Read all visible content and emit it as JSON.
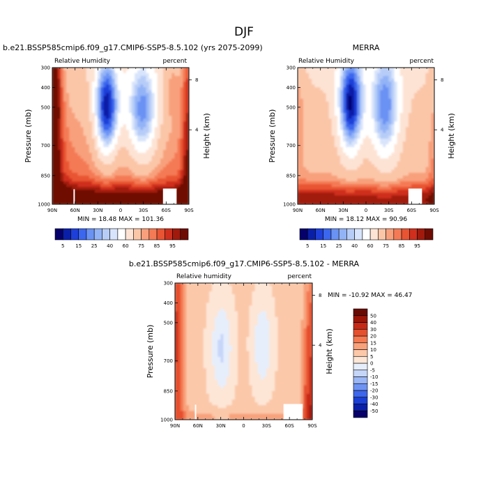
{
  "figure": {
    "title": "DJF"
  },
  "chart_data": [
    {
      "type": "heatmap",
      "id": "model",
      "title": "b.e21.BSSP585cmip6.f09_g17.CMIP6-SSP5-8.5.102 (yrs 2075-2099)",
      "left_label": "Relative Humidity",
      "right_label": "percent",
      "ylabel": "Pressure (mb)",
      "y2label": "Height (km)",
      "x_ticks": [
        "90N",
        "60N",
        "30N",
        "0",
        "30S",
        "60S",
        "90S"
      ],
      "y_ticks": [
        "300",
        "400",
        "500",
        "700",
        "850",
        "1000"
      ],
      "y2_ticks": [
        "8",
        "4"
      ],
      "stats": "MIN = 18.48  MAX = 101.36",
      "min": 18.48,
      "max": 101.36,
      "levels": [
        5,
        10,
        15,
        20,
        25,
        30,
        35,
        40,
        50,
        60,
        70,
        75,
        80,
        85,
        90,
        95
      ],
      "colorbar_labels": [
        "5",
        "15",
        "25",
        "40",
        "60",
        "75",
        "85",
        "95"
      ],
      "colors": [
        "#05006b",
        "#0a1fa8",
        "#1e3fd9",
        "#3b66ee",
        "#6a92f4",
        "#93b3f7",
        "#b7cdf8",
        "#d8e4fb",
        "#ffffff",
        "#fde3d4",
        "#fbc6a8",
        "#f8a07c",
        "#f47a55",
        "#e95433",
        "#cf2f1c",
        "#a11a0c",
        "#6e0c04"
      ],
      "grid": false
    },
    {
      "type": "heatmap",
      "id": "obs",
      "title": "MERRA",
      "left_label": "Relative Humidity",
      "right_label": "percent",
      "ylabel": "Pressure (mb)",
      "y2label": "Height (km)",
      "x_ticks": [
        "90N",
        "60N",
        "30N",
        "0",
        "30S",
        "60S",
        "90S"
      ],
      "y_ticks": [
        "300",
        "400",
        "500",
        "700",
        "850",
        "1000"
      ],
      "y2_ticks": [
        "8",
        "4"
      ],
      "stats": "MIN = 18.12  MAX = 90.96",
      "min": 18.12,
      "max": 90.96,
      "levels": [
        5,
        10,
        15,
        20,
        25,
        30,
        35,
        40,
        50,
        60,
        70,
        75,
        80,
        85,
        90,
        95
      ],
      "colorbar_labels": [
        "5",
        "15",
        "25",
        "40",
        "60",
        "75",
        "85",
        "95"
      ],
      "colors": [
        "#05006b",
        "#0a1fa8",
        "#1e3fd9",
        "#3b66ee",
        "#6a92f4",
        "#93b3f7",
        "#b7cdf8",
        "#d8e4fb",
        "#ffffff",
        "#fde3d4",
        "#fbc6a8",
        "#f8a07c",
        "#f47a55",
        "#e95433",
        "#cf2f1c",
        "#a11a0c",
        "#6e0c04"
      ],
      "grid": false
    },
    {
      "type": "heatmap",
      "id": "diff",
      "title": "b.e21.BSSP585cmip6.f09_g17.CMIP6-SSP5-8.5.102 - MERRA",
      "left_label": "Relative humidity",
      "right_label": "percent",
      "ylabel": "Pressure (mb)",
      "y2label": "Height (km)",
      "x_ticks": [
        "90N",
        "60N",
        "30N",
        "0",
        "30S",
        "60S",
        "90S"
      ],
      "y_ticks": [
        "300",
        "400",
        "500",
        "700",
        "850",
        "1000"
      ],
      "y2_ticks": [
        "8",
        "4"
      ],
      "stats": "MIN = -10.92  MAX = 46.47",
      "min": -10.92,
      "max": 46.47,
      "levels": [
        -50,
        -40,
        -30,
        -20,
        -15,
        -10,
        -5,
        0,
        5,
        10,
        15,
        20,
        30,
        40,
        50
      ],
      "colorbar_labels": [
        "50",
        "40",
        "30",
        "20",
        "15",
        "10",
        "5",
        "0",
        "-5",
        "-10",
        "-15",
        "-20",
        "-30",
        "-40",
        "-50"
      ],
      "colors": [
        "#07006a",
        "#0b20a8",
        "#1c40d6",
        "#3f67ec",
        "#6e93f2",
        "#9bb7f6",
        "#c6d6f9",
        "#e6eefc",
        "#fde6d6",
        "#fbc8a9",
        "#f8a27c",
        "#f47a52",
        "#e5502e",
        "#c62a16",
        "#9c1607",
        "#6a0b03"
      ],
      "grid": false
    }
  ]
}
